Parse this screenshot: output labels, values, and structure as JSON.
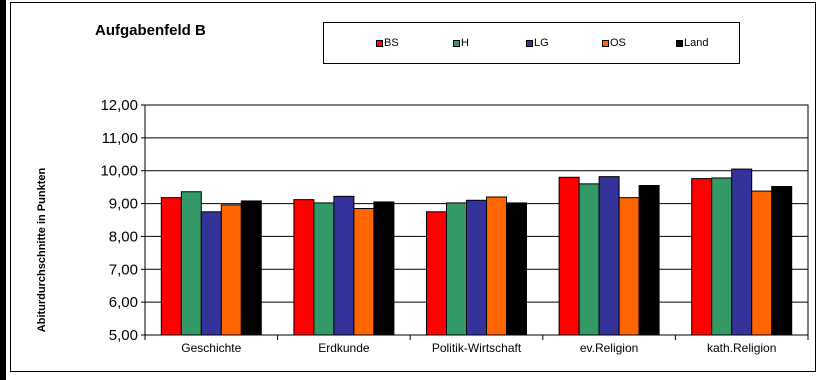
{
  "chart_data": {
    "type": "bar",
    "title": "Aufgabenfeld B",
    "xlabel": "",
    "ylabel": "Abiturdurchschnitte in Punkten",
    "ylim": [
      5,
      12
    ],
    "yticks": [
      "5,00",
      "6,00",
      "7,00",
      "8,00",
      "9,00",
      "10,00",
      "11,00",
      "12,00"
    ],
    "grid": true,
    "legend_position": "top",
    "categories": [
      "Geschichte",
      "Erdkunde",
      "Politik-Wirtschaft",
      "ev.Religion",
      "kath.Religion"
    ],
    "series": [
      {
        "name": "BS",
        "color": "#ff0000",
        "values": [
          9.18,
          9.12,
          8.75,
          9.8,
          9.76
        ]
      },
      {
        "name": "H",
        "color": "#339966",
        "values": [
          9.36,
          9.02,
          9.02,
          9.6,
          9.78
        ]
      },
      {
        "name": "LG",
        "color": "#333399",
        "values": [
          8.75,
          9.22,
          9.1,
          9.82,
          10.05
        ]
      },
      {
        "name": "OS",
        "color": "#ff6600",
        "values": [
          8.96,
          8.85,
          9.2,
          9.18,
          9.38
        ]
      },
      {
        "name": "Land",
        "color": "#000000",
        "values": [
          9.08,
          9.05,
          9.02,
          9.55,
          9.52
        ]
      }
    ]
  }
}
